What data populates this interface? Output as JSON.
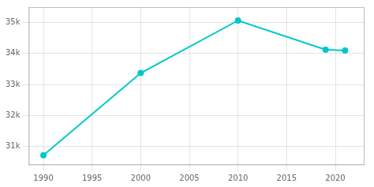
{
  "chart_data": {
    "type": "line",
    "x": [
      1990,
      2000,
      2010,
      2019,
      2021
    ],
    "values": [
      30711,
      33369,
      35067,
      34122,
      34100
    ],
    "color": "#00c8c8",
    "marker": "circle",
    "xlim": [
      1988.5,
      2023
    ],
    "xticks": [
      1990,
      1995,
      2000,
      2005,
      2010,
      2015,
      2020
    ],
    "ylim": [
      30400,
      35500
    ],
    "yticks": [
      {
        "value": 31000,
        "label": "31k"
      },
      {
        "value": 32000,
        "label": "32k"
      },
      {
        "value": 33000,
        "label": "33k"
      },
      {
        "value": 34000,
        "label": "34k"
      },
      {
        "value": 35000,
        "label": "35k"
      }
    ],
    "grid": true
  }
}
